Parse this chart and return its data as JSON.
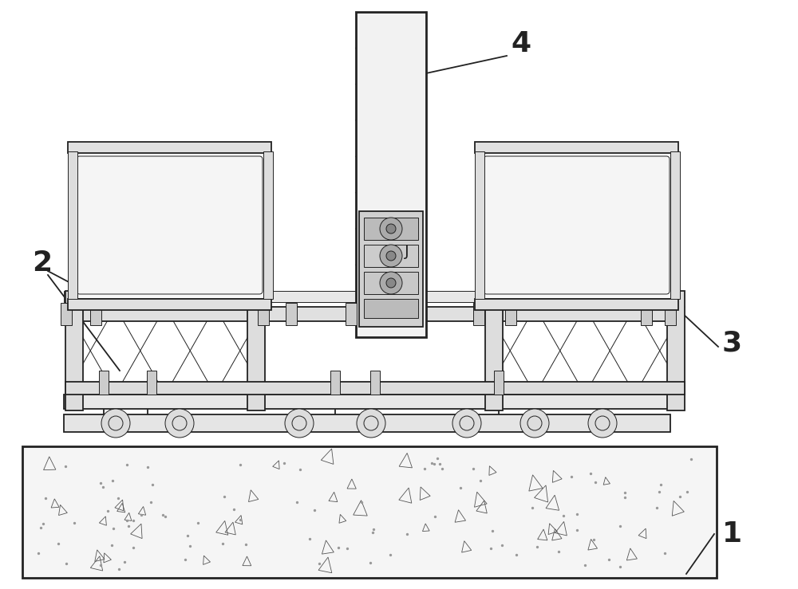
{
  "bg_color": "#ffffff",
  "lc": "#222222",
  "figsize": [
    10.0,
    7.39
  ],
  "dpi": 100,
  "label_fs": 26,
  "concrete_seed": 42,
  "n_stones": 48,
  "n_dots": 90
}
